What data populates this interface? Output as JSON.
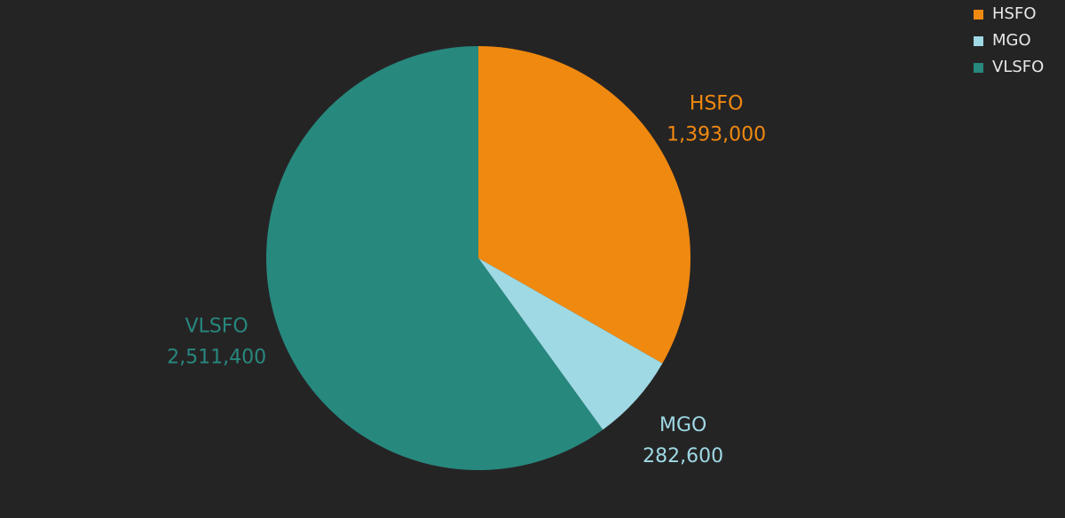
{
  "chart_data": {
    "type": "pie",
    "categories": [
      "HSFO",
      "MGO",
      "VLSFO"
    ],
    "values": [
      1393000,
      282600,
      2511400
    ],
    "value_labels": [
      "1,393,000",
      "282,600",
      "2,511,400"
    ],
    "colors": [
      "#f0890f",
      "#9ed9e4",
      "#27887e"
    ],
    "legend": "top-right"
  }
}
